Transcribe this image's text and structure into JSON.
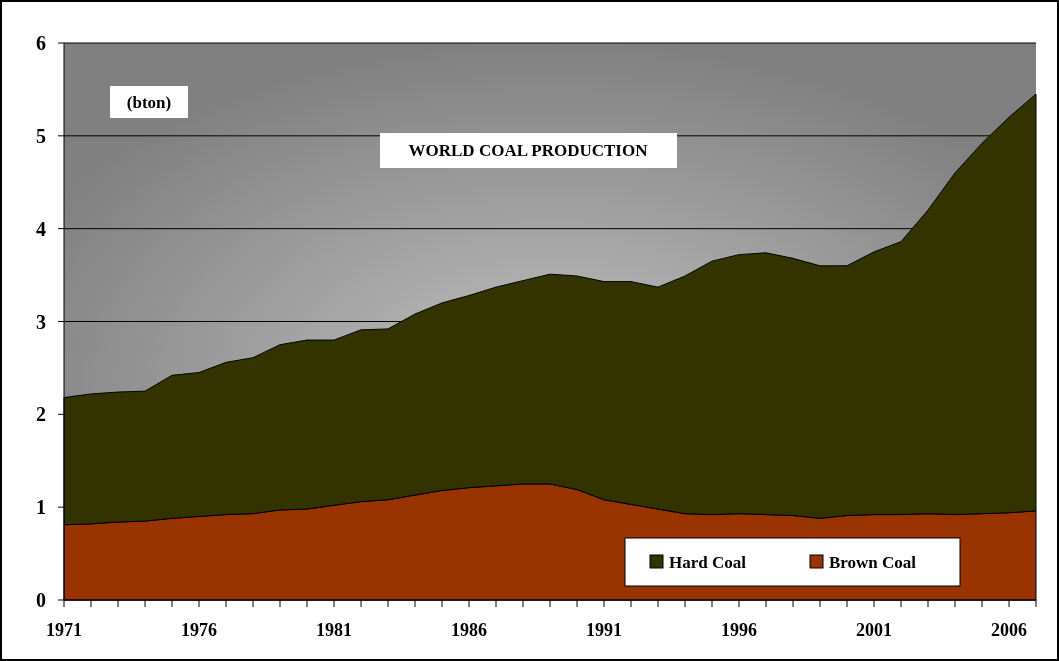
{
  "chart_data": {
    "type": "area",
    "stacked": true,
    "title": "WORLD COAL PRODUCTION",
    "ylabel": "(bton)",
    "categories": [
      "1971",
      null,
      null,
      null,
      null,
      "1976",
      null,
      null,
      null,
      null,
      "1981",
      null,
      null,
      null,
      null,
      "1986",
      null,
      null,
      null,
      null,
      "1991",
      null,
      null,
      null,
      null,
      "1996",
      null,
      null,
      null,
      null,
      "2001",
      null,
      null,
      null,
      null,
      "2006",
      null
    ],
    "series": [
      {
        "name": "Brown Coal",
        "color": "#993300",
        "values": [
          0.81,
          0.82,
          0.84,
          0.85,
          0.88,
          0.9,
          0.92,
          0.93,
          0.97,
          0.98,
          1.02,
          1.06,
          1.08,
          1.13,
          1.18,
          1.21,
          1.23,
          1.25,
          1.25,
          1.19,
          1.08,
          1.03,
          0.98,
          0.93,
          0.92,
          0.93,
          0.92,
          0.91,
          0.88,
          0.91,
          0.92,
          0.92,
          0.93,
          0.92,
          0.93,
          0.94,
          0.96
        ]
      },
      {
        "name": "Hard Coal",
        "color": "#333300",
        "values": [
          1.37,
          1.4,
          1.4,
          1.4,
          1.54,
          1.55,
          1.64,
          1.68,
          1.78,
          1.82,
          1.78,
          1.85,
          1.84,
          1.95,
          2.02,
          2.07,
          2.14,
          2.19,
          2.26,
          2.3,
          2.35,
          2.4,
          2.39,
          2.56,
          2.73,
          2.79,
          2.82,
          2.77,
          2.72,
          2.69,
          2.83,
          2.94,
          3.27,
          3.68,
          3.99,
          4.26,
          4.49
        ]
      }
    ],
    "ylim": [
      0,
      6
    ],
    "yticks": [
      0,
      1,
      2,
      3,
      4,
      5,
      6
    ],
    "grid": "y",
    "legend": "bottom right"
  }
}
